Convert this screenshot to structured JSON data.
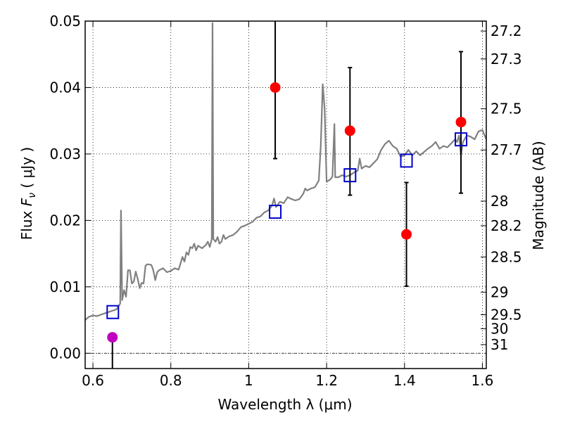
{
  "chart_data": {
    "type": "scatter",
    "xlabel": "Wavelength  λ (μm)",
    "ylabel": "Flux  F_ν  ( μJy )",
    "ylabel_parts": {
      "prefix": "Flux  ",
      "symbol": "F",
      "subscript": "ν",
      "unit": "  ( μJy )"
    },
    "y2label": "Magnitude (AB)",
    "xlim": [
      0.58,
      1.61
    ],
    "ylim": [
      -0.0023,
      0.05
    ],
    "grid": true,
    "x_ticks": [
      {
        "value": 0.6,
        "label": "0.6"
      },
      {
        "value": 0.8,
        "label": "0.8"
      },
      {
        "value": 1.0,
        "label": "1"
      },
      {
        "value": 1.2,
        "label": "1.2"
      },
      {
        "value": 1.4,
        "label": "1.4"
      },
      {
        "value": 1.6,
        "label": "1.6"
      }
    ],
    "y_ticks": [
      {
        "value": 0.0,
        "label": "0.00"
      },
      {
        "value": 0.01,
        "label": "0.01"
      },
      {
        "value": 0.02,
        "label": "0.02"
      },
      {
        "value": 0.03,
        "label": "0.03"
      },
      {
        "value": 0.04,
        "label": "0.04"
      },
      {
        "value": 0.05,
        "label": "0.05"
      }
    ],
    "y2_ticks": [
      {
        "flux": 0.0485,
        "label": "27.2"
      },
      {
        "flux": 0.0443,
        "label": "27.3"
      },
      {
        "flux": 0.0368,
        "label": "27.5"
      },
      {
        "flux": 0.0306,
        "label": "27.7"
      },
      {
        "flux": 0.0229,
        "label": "28"
      },
      {
        "flux": 0.0192,
        "label": "28.2"
      },
      {
        "flux": 0.0145,
        "label": "28.5"
      },
      {
        "flux": 0.0092,
        "label": "29"
      },
      {
        "flux": 0.0058,
        "label": "29.5"
      },
      {
        "flux": 0.0037,
        "label": "30"
      },
      {
        "flux": 0.0013,
        "label": "31"
      }
    ],
    "spectrum": {
      "color": "#808080",
      "points": [
        [
          0.58,
          0.005
        ],
        [
          0.59,
          0.0055
        ],
        [
          0.6,
          0.0057
        ],
        [
          0.61,
          0.0056
        ],
        [
          0.62,
          0.0058
        ],
        [
          0.63,
          0.006
        ],
        [
          0.64,
          0.0062
        ],
        [
          0.65,
          0.0064
        ],
        [
          0.66,
          0.0066
        ],
        [
          0.665,
          0.007
        ],
        [
          0.67,
          0.0075
        ],
        [
          0.672,
          0.0215
        ],
        [
          0.675,
          0.008
        ],
        [
          0.68,
          0.0095
        ],
        [
          0.685,
          0.0085
        ],
        [
          0.69,
          0.0125
        ],
        [
          0.695,
          0.0125
        ],
        [
          0.7,
          0.0105
        ],
        [
          0.705,
          0.0108
        ],
        [
          0.71,
          0.0123
        ],
        [
          0.715,
          0.0112
        ],
        [
          0.72,
          0.0098
        ],
        [
          0.725,
          0.0106
        ],
        [
          0.73,
          0.0105
        ],
        [
          0.735,
          0.0132
        ],
        [
          0.74,
          0.0134
        ],
        [
          0.75,
          0.0133
        ],
        [
          0.755,
          0.0125
        ],
        [
          0.76,
          0.011
        ],
        [
          0.765,
          0.0122
        ],
        [
          0.77,
          0.0125
        ],
        [
          0.78,
          0.0128
        ],
        [
          0.79,
          0.0122
        ],
        [
          0.8,
          0.0124
        ],
        [
          0.81,
          0.0128
        ],
        [
          0.82,
          0.0126
        ],
        [
          0.83,
          0.0145
        ],
        [
          0.835,
          0.0138
        ],
        [
          0.84,
          0.0152
        ],
        [
          0.845,
          0.0148
        ],
        [
          0.85,
          0.016
        ],
        [
          0.855,
          0.0158
        ],
        [
          0.86,
          0.0165
        ],
        [
          0.865,
          0.0155
        ],
        [
          0.87,
          0.0162
        ],
        [
          0.88,
          0.0158
        ],
        [
          0.89,
          0.0163
        ],
        [
          0.895,
          0.0168
        ],
        [
          0.9,
          0.016
        ],
        [
          0.905,
          0.0172
        ],
        [
          0.907,
          0.0497
        ],
        [
          0.909,
          0.0172
        ],
        [
          0.915,
          0.0168
        ],
        [
          0.92,
          0.0175
        ],
        [
          0.925,
          0.0165
        ],
        [
          0.93,
          0.0168
        ],
        [
          0.935,
          0.0178
        ],
        [
          0.94,
          0.0172
        ],
        [
          0.95,
          0.0176
        ],
        [
          0.96,
          0.0178
        ],
        [
          0.97,
          0.0183
        ],
        [
          0.98,
          0.019
        ],
        [
          0.99,
          0.0192
        ],
        [
          1.0,
          0.0195
        ],
        [
          1.01,
          0.0198
        ],
        [
          1.02,
          0.0204
        ],
        [
          1.03,
          0.0206
        ],
        [
          1.04,
          0.0212
        ],
        [
          1.05,
          0.0215
        ],
        [
          1.06,
          0.0222
        ],
        [
          1.065,
          0.0233
        ],
        [
          1.07,
          0.022
        ],
        [
          1.08,
          0.0228
        ],
        [
          1.09,
          0.0226
        ],
        [
          1.1,
          0.0235
        ],
        [
          1.11,
          0.0232
        ],
        [
          1.12,
          0.023
        ],
        [
          1.13,
          0.0232
        ],
        [
          1.14,
          0.024
        ],
        [
          1.145,
          0.0248
        ],
        [
          1.15,
          0.0245
        ],
        [
          1.16,
          0.0248
        ],
        [
          1.17,
          0.025
        ],
        [
          1.18,
          0.026
        ],
        [
          1.185,
          0.0312
        ],
        [
          1.19,
          0.0405
        ],
        [
          1.195,
          0.0368
        ],
        [
          1.2,
          0.0258
        ],
        [
          1.21,
          0.0262
        ],
        [
          1.215,
          0.0266
        ],
        [
          1.22,
          0.0345
        ],
        [
          1.222,
          0.0265
        ],
        [
          1.23,
          0.0265
        ],
        [
          1.24,
          0.0268
        ],
        [
          1.25,
          0.0266
        ],
        [
          1.26,
          0.0268
        ],
        [
          1.27,
          0.0272
        ],
        [
          1.28,
          0.0275
        ],
        [
          1.285,
          0.0293
        ],
        [
          1.29,
          0.0278
        ],
        [
          1.3,
          0.0282
        ],
        [
          1.31,
          0.028
        ],
        [
          1.32,
          0.0286
        ],
        [
          1.33,
          0.0292
        ],
        [
          1.34,
          0.0306
        ],
        [
          1.35,
          0.0315
        ],
        [
          1.36,
          0.032
        ],
        [
          1.37,
          0.0312
        ],
        [
          1.38,
          0.0308
        ],
        [
          1.39,
          0.0296
        ],
        [
          1.4,
          0.0298
        ],
        [
          1.41,
          0.0306
        ],
        [
          1.42,
          0.0298
        ],
        [
          1.43,
          0.0304
        ],
        [
          1.44,
          0.0298
        ],
        [
          1.45,
          0.0303
        ],
        [
          1.46,
          0.0308
        ],
        [
          1.47,
          0.0312
        ],
        [
          1.48,
          0.0318
        ],
        [
          1.49,
          0.0308
        ],
        [
          1.5,
          0.0312
        ],
        [
          1.51,
          0.031
        ],
        [
          1.52,
          0.0316
        ],
        [
          1.53,
          0.0322
        ],
        [
          1.535,
          0.0318
        ],
        [
          1.54,
          0.0328
        ],
        [
          1.545,
          0.0298
        ],
        [
          1.55,
          0.0318
        ],
        [
          1.56,
          0.0328
        ],
        [
          1.57,
          0.0326
        ],
        [
          1.58,
          0.0322
        ],
        [
          1.59,
          0.0334
        ],
        [
          1.6,
          0.0336
        ],
        [
          1.61,
          0.0322
        ]
      ]
    },
    "photometry_points": [
      {
        "x": 0.65,
        "y": 0.0024,
        "err_low": 0.0,
        "err_high": 0.0,
        "color": "#c000c0",
        "lower_line_to_axis": true
      },
      {
        "x": 1.068,
        "y": 0.04,
        "err_low": 0.0293,
        "err_high": 0.0505,
        "color": "#ff0000"
      },
      {
        "x": 1.26,
        "y": 0.0335,
        "err_low": 0.0238,
        "err_high": 0.043,
        "color": "#ff0000"
      },
      {
        "x": 1.405,
        "y": 0.0179,
        "err_low": 0.0101,
        "err_high": 0.0257,
        "color": "#ff0000"
      },
      {
        "x": 1.545,
        "y": 0.0348,
        "err_low": 0.0241,
        "err_high": 0.0454,
        "color": "#ff0000"
      }
    ],
    "model_points": {
      "color": "#0000cc",
      "points": [
        [
          0.651,
          0.0062
        ],
        [
          1.068,
          0.0213
        ],
        [
          1.26,
          0.0268
        ],
        [
          1.405,
          0.029
        ],
        [
          1.545,
          0.0322
        ]
      ]
    }
  }
}
